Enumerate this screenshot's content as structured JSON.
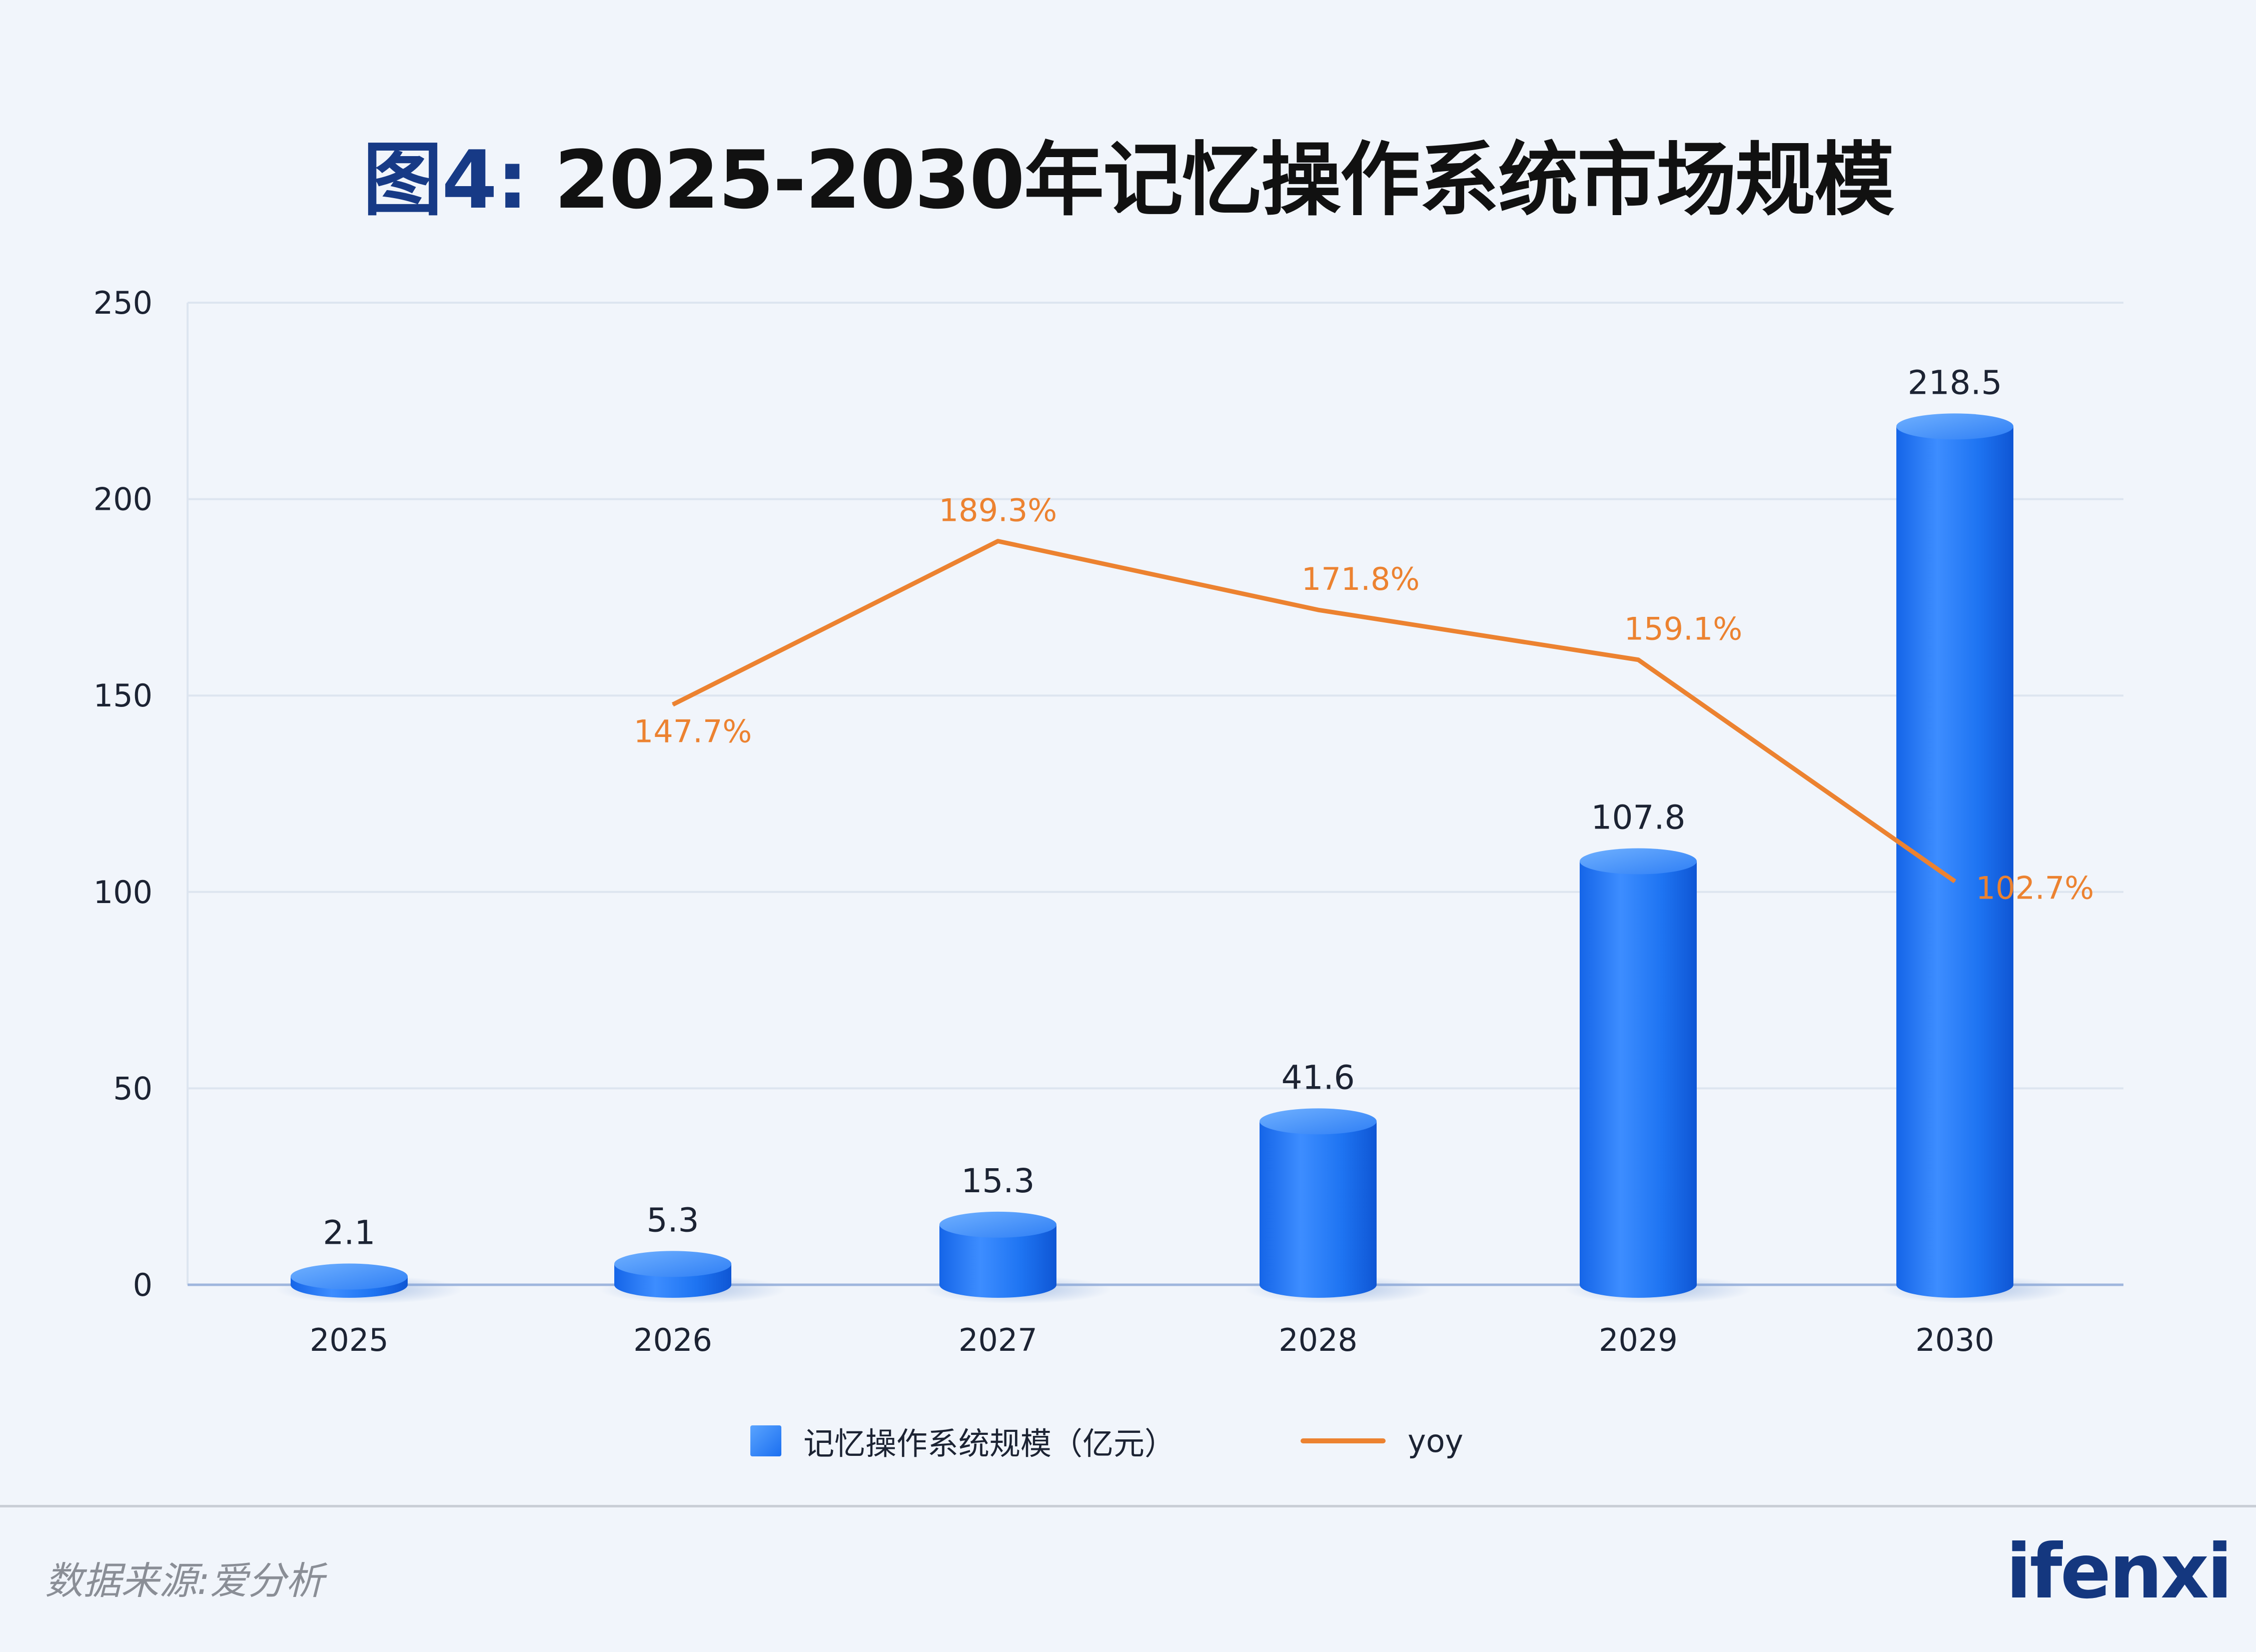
{
  "title_prefix": "图4:",
  "title_main": " 2025-2030年记忆操作系统市场规模",
  "legend": {
    "bar_label": "记忆操作系统规模（亿元）",
    "line_label": "yoy"
  },
  "source": "数据来源:爱分析",
  "logo": "ifenxi",
  "colors": {
    "bar": "#1b6ff0",
    "bar_light": "#5aa4ff",
    "line": "#ec8230",
    "grid": "#dde5f0",
    "axis": "#9fb6dd"
  },
  "chart_data": {
    "type": "bar",
    "categories": [
      "2025",
      "2026",
      "2027",
      "2028",
      "2029",
      "2030"
    ],
    "series": [
      {
        "name": "记忆操作系统规模（亿元）",
        "type": "bar",
        "values": [
          2.1,
          5.3,
          15.3,
          41.6,
          107.8,
          218.5
        ],
        "labels": [
          "2.1",
          "5.3",
          "15.3",
          "41.6",
          "107.8",
          "218.5"
        ]
      },
      {
        "name": "yoy",
        "type": "line",
        "values": [
          null,
          147.7,
          189.3,
          171.8,
          159.1,
          102.7
        ],
        "labels": [
          "",
          "147.7%",
          "189.3%",
          "171.8%",
          "159.1%",
          "102.7%"
        ]
      }
    ],
    "y_ticks": [
      "0",
      "50",
      "100",
      "150",
      "200",
      "250"
    ],
    "ylim": [
      0,
      250
    ],
    "grid": true,
    "legend_position": "bottom"
  }
}
